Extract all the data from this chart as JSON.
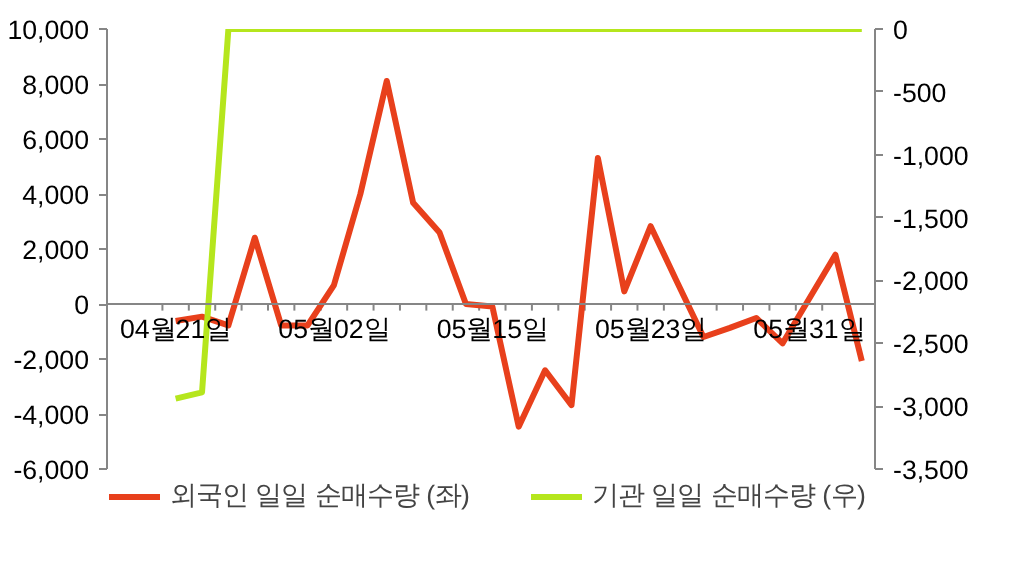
{
  "chart_data": {
    "type": "line",
    "categories": [
      "04월21일",
      null,
      null,
      null,
      null,
      null,
      "05월02일",
      null,
      null,
      null,
      null,
      null,
      "05월15일",
      null,
      null,
      null,
      null,
      null,
      "05월23일",
      null,
      null,
      null,
      null,
      null,
      "05월31일",
      null,
      null
    ],
    "series": [
      {
        "name": "외국인 일일 순매수량 (좌)",
        "color": "#e8401c",
        "values": [
          -620,
          -460,
          -780,
          2410,
          -780,
          -780,
          690,
          4000,
          8110,
          3680,
          2600,
          0,
          -90,
          -4460,
          -2410,
          -3680,
          5310,
          460,
          2830,
          800,
          -1200,
          -870,
          -510,
          -1430,
          180,
          1790,
          -2070
        ]
      },
      {
        "name": "기관 일일 순매수량 (우)",
        "color": "#b5e61d",
        "axis": "y2",
        "values": [
          -2940,
          -2890,
          0,
          0,
          0,
          0,
          0,
          0,
          0,
          0,
          0,
          0,
          0,
          0,
          0,
          0,
          0,
          0,
          0,
          0,
          0,
          0,
          0,
          0,
          0,
          0,
          0
        ]
      }
    ],
    "ylim": [
      -6000,
      10000
    ],
    "yticks": [
      {
        "value": -6000,
        "label": "-6,000"
      },
      {
        "value": -4000,
        "label": "-4,000"
      },
      {
        "value": -2000,
        "label": "-2,000"
      },
      0,
      {
        "value": 2000,
        "label": "2,000"
      },
      {
        "value": 4000,
        "label": "4,000"
      },
      {
        "value": 6000,
        "label": "6,000"
      },
      {
        "value": 8000,
        "label": "8,000"
      },
      {
        "value": 10000,
        "label": "10,000"
      }
    ],
    "y2lim": [
      -3500,
      0
    ],
    "y2ticks": [
      {
        "value": -3500,
        "label": "-3,500"
      },
      {
        "value": -3000,
        "label": "-3,000"
      },
      {
        "value": -2500,
        "label": "-2,500"
      },
      {
        "value": -2000,
        "label": "-2,000"
      },
      {
        "value": -1500,
        "label": "-1,500"
      },
      {
        "value": -1000,
        "label": "-1,000"
      },
      -500,
      0
    ],
    "grid": false,
    "legend": "bottom",
    "marker": "none",
    "line_style": "solid"
  }
}
